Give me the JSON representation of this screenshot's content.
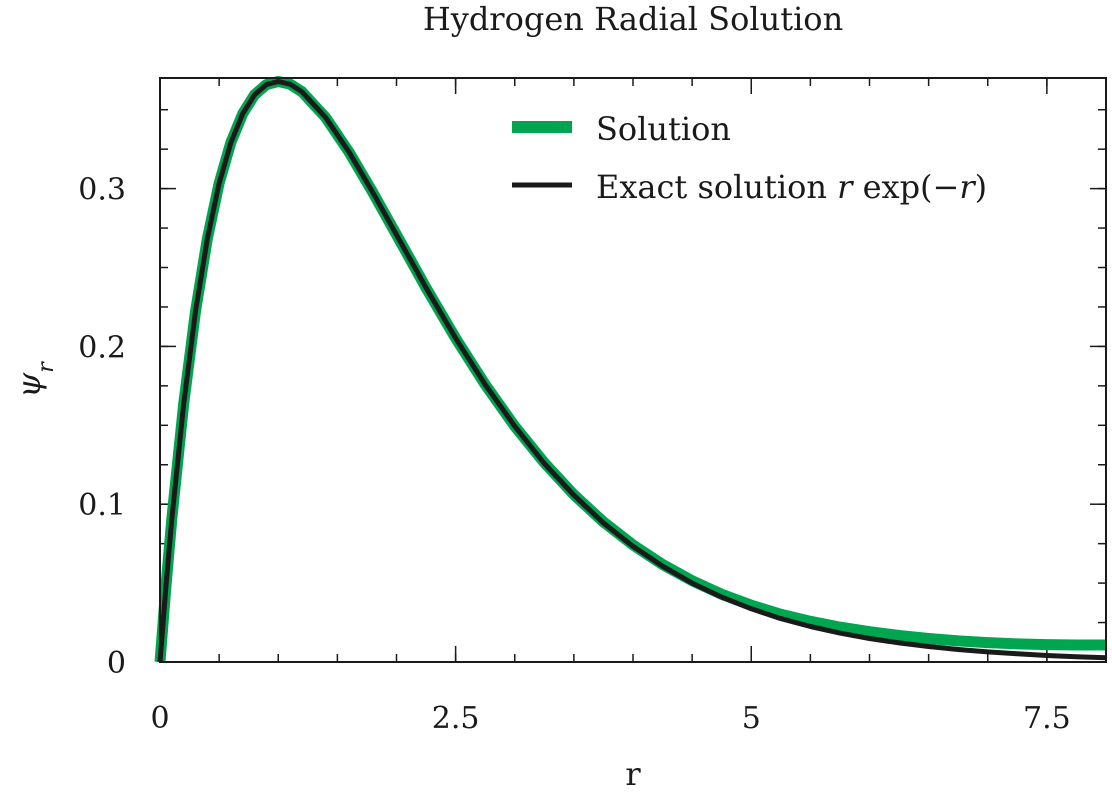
{
  "chart_data": {
    "type": "line",
    "title": "Hydrogen Radial Solution",
    "xlabel": "r",
    "ylabel": "ψ_r",
    "xlim": [
      0,
      8
    ],
    "ylim": [
      0,
      0.3701
    ],
    "x_ticks": [
      {
        "value": 0,
        "label": "0"
      },
      {
        "value": 2.5,
        "label": "2.5"
      },
      {
        "value": 5,
        "label": "5"
      },
      {
        "value": 7.5,
        "label": "7.5"
      }
    ],
    "y_ticks": [
      {
        "value": 0,
        "label": "0"
      },
      {
        "value": 0.1,
        "label": "0.1"
      },
      {
        "value": 0.2,
        "label": "0.2"
      },
      {
        "value": 0.3,
        "label": "0.3"
      }
    ],
    "x_minor_step": 0.5,
    "y_minor_step": 0.025,
    "legend_position": "top-right",
    "series": [
      {
        "name": "Solution",
        "color": "#00a550",
        "points": [
          [
            0,
            0
          ],
          [
            0.05,
            0.0476
          ],
          [
            0.1,
            0.0905
          ],
          [
            0.2,
            0.1637
          ],
          [
            0.3,
            0.2222
          ],
          [
            0.4,
            0.2681
          ],
          [
            0.5,
            0.3033
          ],
          [
            0.6,
            0.3293
          ],
          [
            0.7,
            0.3476
          ],
          [
            0.8,
            0.3595
          ],
          [
            0.9,
            0.3659
          ],
          [
            1.0,
            0.3679
          ],
          [
            1.1,
            0.3662
          ],
          [
            1.2,
            0.3614
          ],
          [
            1.4,
            0.3452
          ],
          [
            1.6,
            0.323
          ],
          [
            1.8,
            0.2975
          ],
          [
            2.0,
            0.2707
          ],
          [
            2.25,
            0.2371
          ],
          [
            2.5,
            0.2052
          ],
          [
            2.75,
            0.1758
          ],
          [
            3.0,
            0.1494
          ],
          [
            3.25,
            0.1263
          ],
          [
            3.5,
            0.106
          ],
          [
            3.75,
            0.0888
          ],
          [
            4.0,
            0.0742
          ],
          [
            4.25,
            0.0618
          ],
          [
            4.5,
            0.0515
          ],
          [
            4.75,
            0.0429
          ],
          [
            5.0,
            0.036
          ],
          [
            5.25,
            0.0303
          ],
          [
            5.5,
            0.0258
          ],
          [
            5.75,
            0.0221
          ],
          [
            6.0,
            0.0192
          ],
          [
            6.25,
            0.0168
          ],
          [
            6.5,
            0.0149
          ],
          [
            6.75,
            0.0134
          ],
          [
            7.0,
            0.0123
          ],
          [
            7.25,
            0.0115
          ],
          [
            7.5,
            0.011
          ],
          [
            7.75,
            0.0108
          ],
          [
            8.0,
            0.0108
          ]
        ]
      },
      {
        "name": "Exact solution r exp(−r)",
        "color": "#1a1a1a",
        "points": [
          [
            0,
            0
          ],
          [
            0.05,
            0.0476
          ],
          [
            0.1,
            0.0905
          ],
          [
            0.2,
            0.1637
          ],
          [
            0.3,
            0.2222
          ],
          [
            0.4,
            0.2681
          ],
          [
            0.5,
            0.3033
          ],
          [
            0.6,
            0.3293
          ],
          [
            0.7,
            0.3476
          ],
          [
            0.8,
            0.3595
          ],
          [
            0.9,
            0.3659
          ],
          [
            1.0,
            0.3679
          ],
          [
            1.1,
            0.3662
          ],
          [
            1.2,
            0.3614
          ],
          [
            1.4,
            0.3452
          ],
          [
            1.6,
            0.323
          ],
          [
            1.8,
            0.2975
          ],
          [
            2.0,
            0.2707
          ],
          [
            2.25,
            0.2371
          ],
          [
            2.5,
            0.2052
          ],
          [
            2.75,
            0.1758
          ],
          [
            3.0,
            0.1494
          ],
          [
            3.25,
            0.1258
          ],
          [
            3.5,
            0.1057
          ],
          [
            3.75,
            0.0881
          ],
          [
            4.0,
            0.0733
          ],
          [
            4.25,
            0.0607
          ],
          [
            4.5,
            0.05
          ],
          [
            4.75,
            0.0411
          ],
          [
            5.0,
            0.0337
          ],
          [
            5.25,
            0.0275
          ],
          [
            5.5,
            0.0225
          ],
          [
            5.75,
            0.0183
          ],
          [
            6.0,
            0.0149
          ],
          [
            6.25,
            0.0121
          ],
          [
            6.5,
            0.0098
          ],
          [
            6.75,
            0.0079
          ],
          [
            7.0,
            0.0064
          ],
          [
            7.25,
            0.0052
          ],
          [
            7.5,
            0.0041
          ],
          [
            7.75,
            0.0033
          ],
          [
            8.0,
            0.0027
          ]
        ]
      }
    ]
  }
}
